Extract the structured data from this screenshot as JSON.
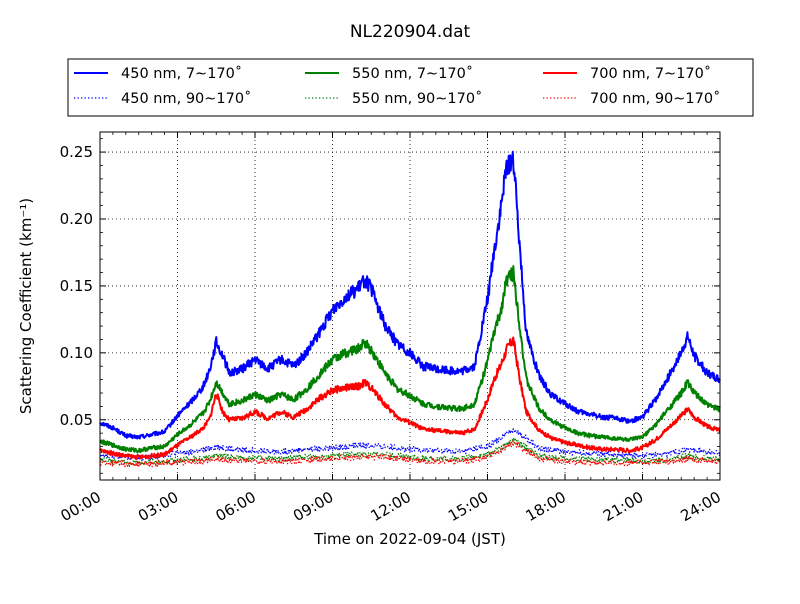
{
  "chart_data": {
    "type": "line",
    "title": "NL220904.dat",
    "xlabel": "Time on 2022-09-04 (JST)",
    "ylabel": "Scattering Coefficient (km⁻¹)",
    "x_ticks": [
      "00:00",
      "03:00",
      "06:00",
      "09:00",
      "12:00",
      "15:00",
      "18:00",
      "21:00",
      "24:00"
    ],
    "xlim": [
      0,
      24
    ],
    "ylim": [
      0.005,
      0.265
    ],
    "y_ticks": [
      "0.05",
      "0.10",
      "0.15",
      "0.20",
      "0.25"
    ],
    "y_tick_values": [
      0.05,
      0.1,
      0.15,
      0.2,
      0.25
    ],
    "grid": true,
    "legend_position": "top-center",
    "series": [
      {
        "name": "450 nm, 7∼170˚",
        "color": "#0000ff",
        "style": "solid",
        "x": [
          0,
          0.5,
          1,
          1.5,
          2,
          2.5,
          3,
          3.5,
          4,
          4.25,
          4.5,
          4.75,
          5,
          5.5,
          6,
          6.5,
          7,
          7.5,
          8,
          8.5,
          9,
          9.5,
          10,
          10.25,
          10.5,
          11,
          11.5,
          12,
          12.5,
          13,
          13.5,
          14,
          14.5,
          15,
          15.25,
          15.5,
          15.75,
          16,
          16.25,
          16.5,
          17,
          17.5,
          18,
          18.5,
          19,
          19.5,
          20,
          20.5,
          21,
          21.5,
          22,
          22.5,
          22.75,
          23,
          23.5,
          24
        ],
        "values": [
          0.048,
          0.044,
          0.038,
          0.037,
          0.039,
          0.041,
          0.053,
          0.063,
          0.075,
          0.088,
          0.108,
          0.098,
          0.085,
          0.088,
          0.095,
          0.088,
          0.095,
          0.09,
          0.1,
          0.115,
          0.132,
          0.142,
          0.148,
          0.155,
          0.148,
          0.122,
          0.107,
          0.1,
          0.09,
          0.088,
          0.087,
          0.086,
          0.09,
          0.14,
          0.175,
          0.205,
          0.24,
          0.245,
          0.18,
          0.115,
          0.082,
          0.068,
          0.062,
          0.056,
          0.054,
          0.052,
          0.051,
          0.049,
          0.052,
          0.065,
          0.082,
          0.1,
          0.112,
          0.098,
          0.085,
          0.08
        ]
      },
      {
        "name": "450 nm, 90∼170˚",
        "color": "#0000ff",
        "style": "dotted",
        "x": [
          0,
          1,
          2,
          3,
          4,
          4.5,
          5,
          6,
          7,
          8,
          9,
          10,
          11,
          12,
          13,
          14,
          15,
          15.5,
          16,
          16.5,
          17,
          18,
          19,
          20,
          21,
          22,
          22.75,
          23,
          24
        ],
        "values": [
          0.024,
          0.022,
          0.022,
          0.025,
          0.027,
          0.03,
          0.028,
          0.027,
          0.026,
          0.028,
          0.029,
          0.031,
          0.03,
          0.028,
          0.027,
          0.026,
          0.03,
          0.036,
          0.043,
          0.036,
          0.029,
          0.026,
          0.025,
          0.024,
          0.023,
          0.025,
          0.028,
          0.027,
          0.025
        ]
      },
      {
        "name": "550 nm, 7∼170˚",
        "color": "#008000",
        "style": "solid",
        "x": [
          0,
          0.5,
          1,
          1.5,
          2,
          2.5,
          3,
          3.5,
          4,
          4.25,
          4.5,
          4.75,
          5,
          5.5,
          6,
          6.5,
          7,
          7.5,
          8,
          8.5,
          9,
          9.5,
          10,
          10.25,
          10.5,
          11,
          11.5,
          12,
          12.5,
          13,
          13.5,
          14,
          14.5,
          15,
          15.25,
          15.5,
          15.75,
          16,
          16.25,
          16.5,
          17,
          17.5,
          18,
          18.5,
          19,
          19.5,
          20,
          20.5,
          21,
          21.5,
          22,
          22.5,
          22.75,
          23,
          23.5,
          24
        ],
        "values": [
          0.034,
          0.031,
          0.028,
          0.027,
          0.029,
          0.03,
          0.039,
          0.046,
          0.055,
          0.064,
          0.078,
          0.07,
          0.062,
          0.064,
          0.069,
          0.064,
          0.069,
          0.065,
          0.073,
          0.084,
          0.095,
          0.1,
          0.103,
          0.108,
          0.102,
          0.086,
          0.073,
          0.068,
          0.062,
          0.06,
          0.059,
          0.058,
          0.062,
          0.093,
          0.115,
          0.13,
          0.155,
          0.16,
          0.12,
          0.08,
          0.058,
          0.049,
          0.044,
          0.04,
          0.038,
          0.037,
          0.036,
          0.035,
          0.037,
          0.046,
          0.058,
          0.07,
          0.078,
          0.07,
          0.061,
          0.058
        ]
      },
      {
        "name": "550 nm, 90∼170˚",
        "color": "#008000",
        "style": "dotted",
        "x": [
          0,
          1,
          2,
          3,
          4,
          4.5,
          5,
          6,
          7,
          8,
          9,
          10,
          11,
          12,
          13,
          14,
          15,
          15.5,
          16,
          16.5,
          17,
          18,
          19,
          20,
          21,
          22,
          22.75,
          23,
          24
        ],
        "values": [
          0.02,
          0.018,
          0.018,
          0.02,
          0.021,
          0.023,
          0.022,
          0.021,
          0.021,
          0.022,
          0.023,
          0.024,
          0.024,
          0.022,
          0.021,
          0.021,
          0.024,
          0.029,
          0.035,
          0.029,
          0.023,
          0.021,
          0.02,
          0.02,
          0.019,
          0.02,
          0.023,
          0.022,
          0.02
        ]
      },
      {
        "name": "700 nm, 7∼170˚",
        "color": "#ff0000",
        "style": "solid",
        "x": [
          0,
          0.5,
          1,
          1.5,
          2,
          2.5,
          3,
          3.5,
          4,
          4.25,
          4.5,
          4.75,
          5,
          5.5,
          6,
          6.5,
          7,
          7.5,
          8,
          8.5,
          9,
          9.5,
          10,
          10.25,
          10.5,
          11,
          11.5,
          12,
          12.5,
          13,
          13.5,
          14,
          14.5,
          15,
          15.25,
          15.5,
          15.75,
          16,
          16.25,
          16.5,
          17,
          17.5,
          18,
          18.5,
          19,
          19.5,
          20,
          20.5,
          21,
          21.5,
          22,
          22.5,
          22.75,
          23,
          23.5,
          24
        ],
        "values": [
          0.027,
          0.025,
          0.023,
          0.022,
          0.023,
          0.024,
          0.031,
          0.037,
          0.044,
          0.051,
          0.07,
          0.056,
          0.05,
          0.051,
          0.056,
          0.051,
          0.056,
          0.052,
          0.058,
          0.066,
          0.072,
          0.074,
          0.075,
          0.078,
          0.074,
          0.062,
          0.052,
          0.048,
          0.043,
          0.042,
          0.041,
          0.04,
          0.043,
          0.065,
          0.08,
          0.09,
          0.103,
          0.11,
          0.08,
          0.056,
          0.042,
          0.036,
          0.033,
          0.031,
          0.029,
          0.028,
          0.028,
          0.027,
          0.029,
          0.035,
          0.044,
          0.053,
          0.058,
          0.052,
          0.045,
          0.042
        ]
      },
      {
        "name": "700 nm, 90∼170˚",
        "color": "#ff0000",
        "style": "dotted",
        "x": [
          0,
          1,
          2,
          3,
          4,
          4.5,
          5,
          6,
          7,
          8,
          9,
          10,
          11,
          12,
          13,
          14,
          15,
          15.5,
          16,
          16.5,
          17,
          18,
          19,
          20,
          21,
          22,
          22.75,
          23,
          24
        ],
        "values": [
          0.018,
          0.017,
          0.017,
          0.018,
          0.019,
          0.021,
          0.02,
          0.019,
          0.019,
          0.02,
          0.021,
          0.022,
          0.022,
          0.02,
          0.019,
          0.019,
          0.022,
          0.027,
          0.033,
          0.027,
          0.021,
          0.019,
          0.018,
          0.018,
          0.018,
          0.019,
          0.021,
          0.02,
          0.019
        ]
      }
    ]
  }
}
